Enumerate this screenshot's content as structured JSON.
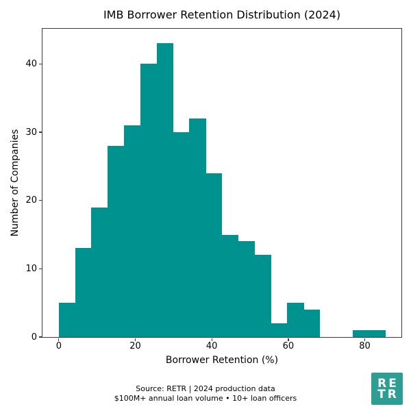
{
  "chart_data": {
    "type": "histogram",
    "title": "IMB Borrower Retention Distribution (2024)",
    "xlabel": "Borrower Retention (%)",
    "ylabel": "Number of Companies",
    "bin_start": 0.0,
    "bin_width": 4.265,
    "counts": [
      5,
      13,
      19,
      28,
      31,
      40,
      43,
      30,
      32,
      24,
      15,
      14,
      12,
      2,
      5,
      4,
      0,
      0,
      1,
      1
    ],
    "xticks": [
      0,
      20,
      40,
      60,
      80
    ],
    "yticks": [
      0,
      10,
      20,
      30,
      40
    ],
    "xlim": [
      -4.27,
      89.57
    ],
    "ylim": [
      0,
      45.15
    ],
    "grid": false,
    "legend_position": "none",
    "bar_color": "#00928E"
  },
  "footer": {
    "line1": "Source: RETR | 2024 production data",
    "line2": "$100M+ annual loan volume • 10+ loan officers"
  },
  "logo": {
    "line1": "RE",
    "line2": "TR",
    "background_color": "#2E9E94",
    "text_color": "#ffffff"
  }
}
